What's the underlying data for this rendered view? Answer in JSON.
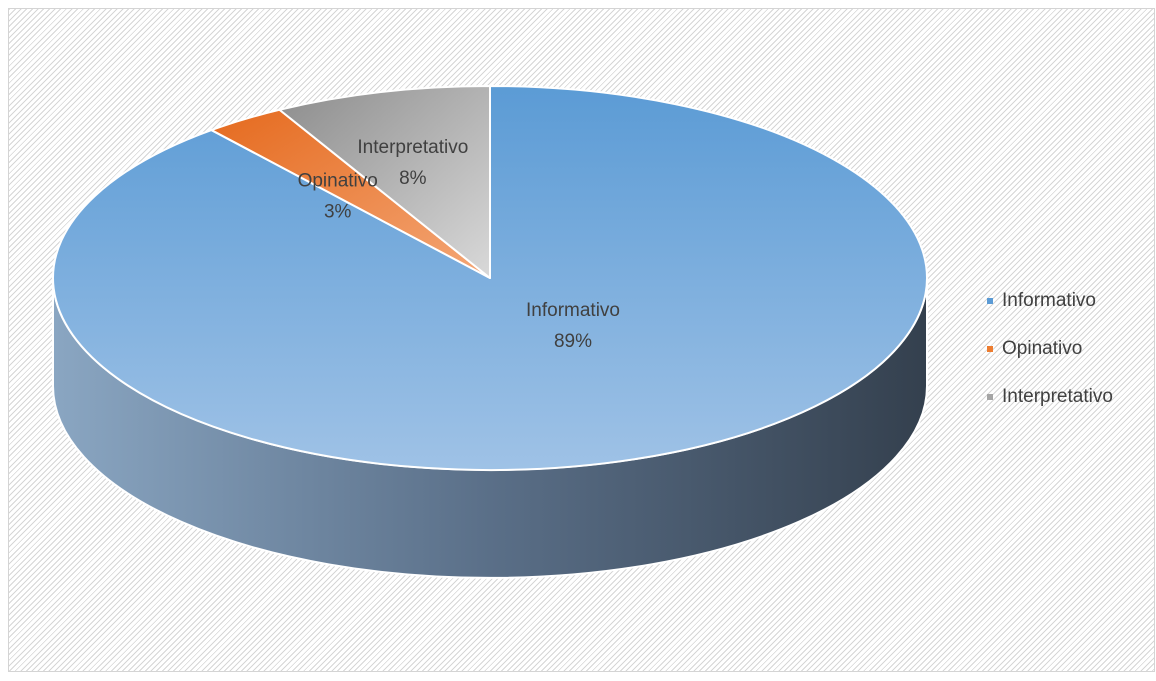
{
  "chart_data": {
    "type": "pie",
    "title": "",
    "slices": [
      {
        "name": "Informativo",
        "value": 89,
        "label": "Informativo",
        "percent": "89%",
        "color": "#5b9bd5"
      },
      {
        "name": "Opinativo",
        "value": 3,
        "label": "Opinativo",
        "percent": "3%",
        "color": "#ed7d31"
      },
      {
        "name": "Interpretativo",
        "value": 8,
        "label": "Interpretativo",
        "percent": "8%",
        "color": "#a5a5a5"
      }
    ],
    "legend_position": "right",
    "style": "3d"
  }
}
